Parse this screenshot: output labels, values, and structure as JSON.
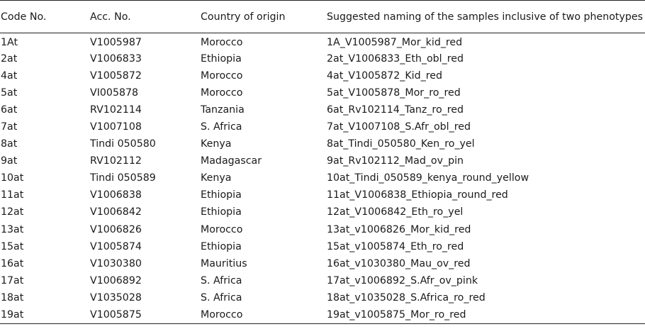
{
  "table": {
    "headers": [
      "Code No.",
      "Acc. No.",
      "Country of origin",
      "Suggested naming of the samples inclusive of two phenotypes"
    ],
    "rows": [
      [
        "1At",
        "V1005987",
        "Morocco",
        "1A_V1005987_Mor_kid_red"
      ],
      [
        "2at",
        "V1006833",
        "Ethiopia",
        "2at_V1006833_Eth_obl_red"
      ],
      [
        "4at",
        "V1005872",
        "Morocco",
        "4at_V1005872_Kid_red"
      ],
      [
        "5at",
        "VI005878",
        "Morocco",
        "5at_V1005878_Mor_ro_red"
      ],
      [
        "6at",
        "RV102114",
        "Tanzania",
        "6at_Rv102114_Tanz_ro_red"
      ],
      [
        "7at",
        "V1007108",
        "S. Africa",
        "7at_V1007108_S.Afr_obl_red"
      ],
      [
        "8at",
        "Tindi 050580",
        "Kenya",
        "8at_Tindi_050580_Ken_ro_yel"
      ],
      [
        "9at",
        "RV102112",
        "Madagascar",
        "9at_Rv102112_Mad_ov_pin"
      ],
      [
        "10at",
        "Tindi 050589",
        "Kenya",
        "10at_Tindi_050589_kenya_round_yellow"
      ],
      [
        "11at",
        "V1006838",
        "Ethiopia",
        "11at_V1006838_Ethiopia_round_red"
      ],
      [
        "12at",
        "V1006842",
        "Ethiopia",
        "12at_V1006842_Eth_ro_yel"
      ],
      [
        "13at",
        "V1006826",
        "Morocco",
        "13at_v1006826_Mor_kid_red"
      ],
      [
        "15at",
        "V1005874",
        "Ethiopia",
        "15at_v1005874_Eth_ro_red"
      ],
      [
        "16at",
        "V1030380",
        "Mauritius",
        "16at_v1030380_Mau_ov_red"
      ],
      [
        "17at",
        "V1006892",
        "S. Africa",
        "17at_v1006892_S.Afr_ov_pink"
      ],
      [
        "18at",
        "V1035028",
        "S. Africa",
        "18at_v1035028_S.Africa_ro_red"
      ],
      [
        "19at",
        "V1005875",
        "Morocco",
        "19at_v1005875_Mor_ro_red"
      ]
    ]
  }
}
